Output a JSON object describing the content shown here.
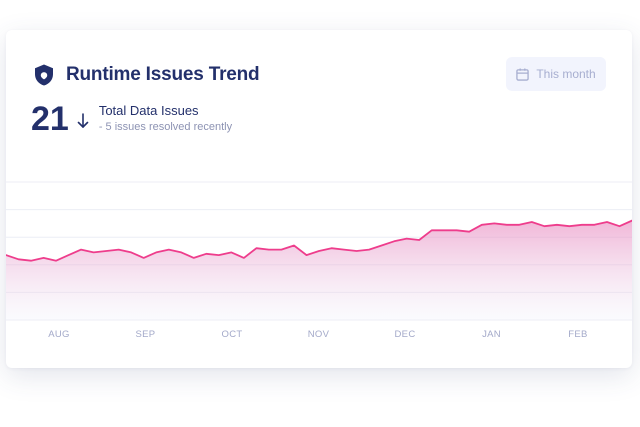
{
  "widget": {
    "title": "Runtime Issues Trend",
    "title_icon": "shield-icon",
    "period_button": {
      "label": "This month",
      "icon": "calendar-icon"
    },
    "metric": {
      "value": "21",
      "trend_icon": "arrow-down-icon",
      "label": "Total Data Issues",
      "sublabel": "- 5 issues resolved recently"
    }
  },
  "colors": {
    "line": "#ee3d8c",
    "area_top": "#e57bb7",
    "area_bottom": "#eef0fb",
    "title": "#23306b",
    "axis_label": "#a3a9c9",
    "grid": "#eceef5"
  },
  "chart_data": {
    "type": "area",
    "x_labels": [
      "AUG",
      "SEP",
      "OCT",
      "NOV",
      "DEC",
      "JAN",
      "FEB"
    ],
    "values": [
      47,
      44,
      43,
      45,
      43,
      47,
      51,
      49,
      50,
      51,
      49,
      45,
      49,
      51,
      49,
      45,
      48,
      47,
      49,
      45,
      52,
      51,
      51,
      54,
      47,
      50,
      52,
      51,
      50,
      51,
      54,
      57,
      59,
      58,
      65,
      65,
      65,
      64,
      69,
      70,
      69,
      69,
      71,
      68,
      69,
      68,
      69,
      69,
      71,
      68,
      72
    ],
    "ylim": [
      0,
      100
    ],
    "grid": true,
    "legend": "none"
  }
}
